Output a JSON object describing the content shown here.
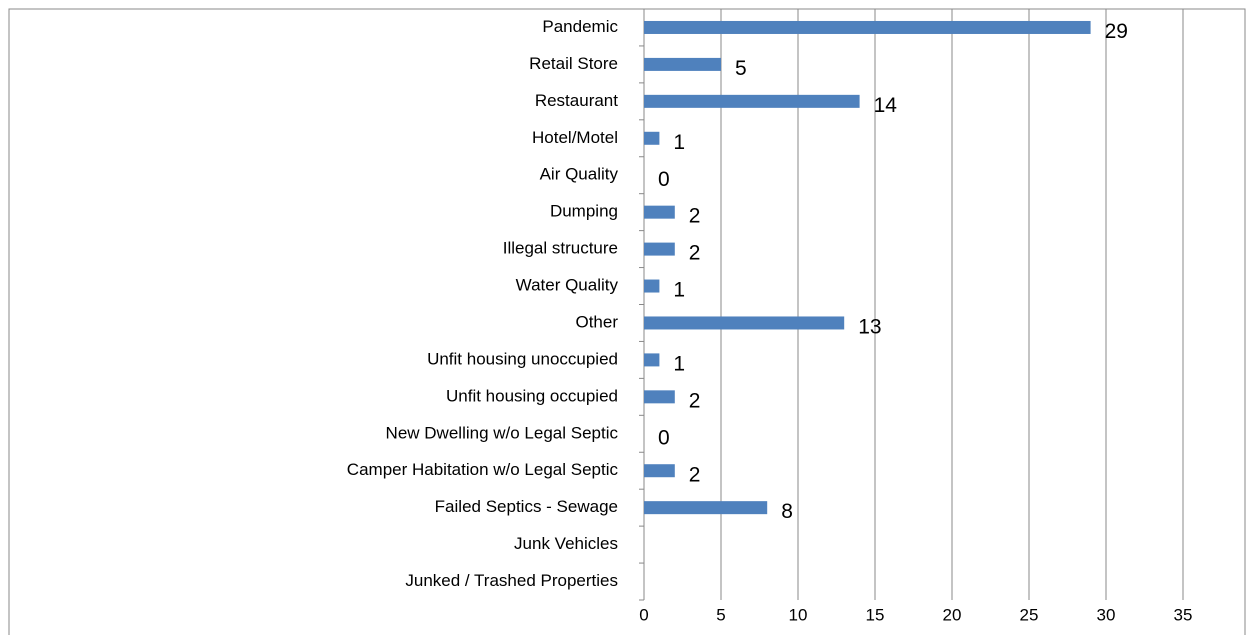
{
  "chart_data": {
    "type": "bar",
    "orientation": "horizontal",
    "categories": [
      "Pandemic",
      "Retail Store",
      "Restaurant",
      "Hotel/Motel",
      "Air Quality",
      "Dumping",
      "Illegal structure",
      "Water Quality",
      "Other",
      "Unfit housing unoccupied",
      "Unfit housing occupied",
      "New Dwelling w/o Legal Septic",
      "Camper Habitation w/o Legal Septic",
      "Failed Septics - Sewage",
      "Junk Vehicles",
      "Junked / Trashed Properties"
    ],
    "values": [
      29,
      5,
      14,
      1,
      0,
      2,
      2,
      1,
      13,
      1,
      2,
      0,
      2,
      8,
      null,
      null
    ],
    "color": "#4f81bd",
    "xlim": [
      0,
      35
    ],
    "xticks": [
      0,
      5,
      10,
      15,
      20,
      25,
      30,
      35
    ],
    "grid": true
  }
}
